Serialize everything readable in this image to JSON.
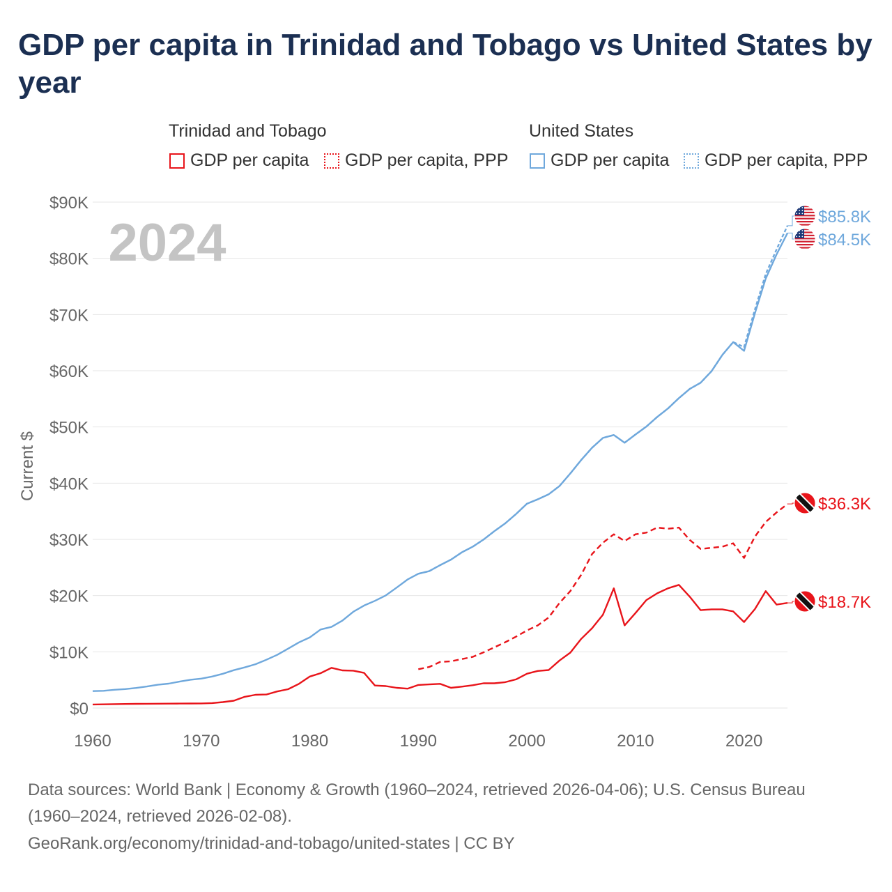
{
  "title": "GDP per capita in Trinidad and Tobago vs United States by year",
  "legend": {
    "groups": [
      {
        "name": "Trinidad and Tobago",
        "items": [
          {
            "label": "GDP per capita",
            "style": "solid"
          },
          {
            "label": "GDP per capita, PPP",
            "style": "dotted"
          }
        ],
        "color": "#e8141a"
      },
      {
        "name": "United States",
        "items": [
          {
            "label": "GDP per capita",
            "style": "solid"
          },
          {
            "label": "GDP per capita, PPP",
            "style": "dotted"
          }
        ],
        "color": "#6fa8dc"
      }
    ]
  },
  "year_watermark": "2024",
  "colors": {
    "tt": "#e8141a",
    "us": "#6fa8dc",
    "title": "#1b2f52",
    "grid": "#e6e6e6",
    "axis_text": "#666666"
  },
  "chart_data": {
    "type": "line",
    "title": "GDP per capita in Trinidad and Tobago vs United States by year",
    "ylabel": "Current $",
    "xlabel": "",
    "xlim": [
      1960,
      2024
    ],
    "ylim": [
      0,
      90000
    ],
    "x_ticks": [
      1960,
      1970,
      1980,
      1990,
      2000,
      2010,
      2020
    ],
    "x_tick_labels": [
      "1960",
      "1970",
      "1980",
      "1990",
      "2000",
      "2010",
      "2020"
    ],
    "y_ticks": [
      0,
      10000,
      20000,
      30000,
      40000,
      50000,
      60000,
      70000,
      80000,
      90000
    ],
    "y_tick_labels": [
      "$0",
      "$10K",
      "$20K",
      "$30K",
      "$40K",
      "$50K",
      "$60K",
      "$70K",
      "$80K",
      "$90K"
    ],
    "series": [
      {
        "name": "United States GDP per capita",
        "country": "us",
        "style": "solid",
        "end_label": "$84.5K",
        "points": [
          [
            1960,
            3007
          ],
          [
            1961,
            3067
          ],
          [
            1962,
            3244
          ],
          [
            1963,
            3375
          ],
          [
            1964,
            3574
          ],
          [
            1965,
            3828
          ],
          [
            1966,
            4146
          ],
          [
            1967,
            4336
          ],
          [
            1968,
            4696
          ],
          [
            1969,
            5032
          ],
          [
            1970,
            5234
          ],
          [
            1971,
            5609
          ],
          [
            1972,
            6094
          ],
          [
            1973,
            6726
          ],
          [
            1974,
            7226
          ],
          [
            1975,
            7801
          ],
          [
            1976,
            8592
          ],
          [
            1977,
            9453
          ],
          [
            1978,
            10565
          ],
          [
            1979,
            11674
          ],
          [
            1980,
            12575
          ],
          [
            1981,
            13976
          ],
          [
            1982,
            14434
          ],
          [
            1983,
            15544
          ],
          [
            1984,
            17121
          ],
          [
            1985,
            18237
          ],
          [
            1986,
            19071
          ],
          [
            1987,
            20039
          ],
          [
            1988,
            21417
          ],
          [
            1989,
            22857
          ],
          [
            1990,
            23889
          ],
          [
            1991,
            24342
          ],
          [
            1992,
            25419
          ],
          [
            1993,
            26387
          ],
          [
            1994,
            27695
          ],
          [
            1995,
            28691
          ],
          [
            1996,
            29968
          ],
          [
            1997,
            31459
          ],
          [
            1998,
            32854
          ],
          [
            1999,
            34515
          ],
          [
            2000,
            36330
          ],
          [
            2001,
            37134
          ],
          [
            2002,
            38023
          ],
          [
            2003,
            39497
          ],
          [
            2004,
            41725
          ],
          [
            2005,
            44123
          ],
          [
            2006,
            46302
          ],
          [
            2007,
            48050
          ],
          [
            2008,
            48570
          ],
          [
            2009,
            47195
          ],
          [
            2010,
            48651
          ],
          [
            2011,
            50066
          ],
          [
            2012,
            51784
          ],
          [
            2013,
            53291
          ],
          [
            2014,
            55124
          ],
          [
            2015,
            56763
          ],
          [
            2016,
            57867
          ],
          [
            2017,
            59915
          ],
          [
            2018,
            62805
          ],
          [
            2019,
            65095
          ],
          [
            2020,
            63528
          ],
          [
            2021,
            70220
          ],
          [
            2022,
            76399
          ],
          [
            2023,
            80705
          ],
          [
            2024,
            84500
          ]
        ]
      },
      {
        "name": "United States GDP per capita, PPP",
        "country": "us",
        "style": "dotted",
        "end_label": "$85.8K",
        "points": [
          [
            1990,
            23889
          ],
          [
            1991,
            24342
          ],
          [
            1992,
            25419
          ],
          [
            1993,
            26387
          ],
          [
            1994,
            27695
          ],
          [
            1995,
            28691
          ],
          [
            1996,
            29968
          ],
          [
            1997,
            31459
          ],
          [
            1998,
            32854
          ],
          [
            1999,
            34515
          ],
          [
            2000,
            36330
          ],
          [
            2001,
            37134
          ],
          [
            2002,
            38023
          ],
          [
            2003,
            39497
          ],
          [
            2004,
            41725
          ],
          [
            2005,
            44123
          ],
          [
            2006,
            46302
          ],
          [
            2007,
            48050
          ],
          [
            2008,
            48570
          ],
          [
            2009,
            47195
          ],
          [
            2010,
            48651
          ],
          [
            2011,
            50066
          ],
          [
            2012,
            51784
          ],
          [
            2013,
            53291
          ],
          [
            2014,
            55124
          ],
          [
            2015,
            56763
          ],
          [
            2016,
            57867
          ],
          [
            2017,
            59915
          ],
          [
            2018,
            62805
          ],
          [
            2019,
            65095
          ],
          [
            2020,
            64200
          ],
          [
            2021,
            70900
          ],
          [
            2022,
            77200
          ],
          [
            2023,
            81600
          ],
          [
            2024,
            85800
          ]
        ]
      },
      {
        "name": "Trinidad and Tobago GDP per capita",
        "country": "tt",
        "style": "solid",
        "end_label": "$18.7K",
        "points": [
          [
            1960,
            630
          ],
          [
            1961,
            660
          ],
          [
            1962,
            690
          ],
          [
            1963,
            720
          ],
          [
            1964,
            750
          ],
          [
            1965,
            760
          ],
          [
            1966,
            770
          ],
          [
            1967,
            780
          ],
          [
            1968,
            790
          ],
          [
            1969,
            800
          ],
          [
            1970,
            820
          ],
          [
            1971,
            880
          ],
          [
            1972,
            1050
          ],
          [
            1973,
            1300
          ],
          [
            1974,
            2000
          ],
          [
            1975,
            2350
          ],
          [
            1976,
            2400
          ],
          [
            1977,
            2950
          ],
          [
            1978,
            3350
          ],
          [
            1979,
            4300
          ],
          [
            1980,
            5600
          ],
          [
            1981,
            6200
          ],
          [
            1982,
            7150
          ],
          [
            1983,
            6700
          ],
          [
            1984,
            6650
          ],
          [
            1985,
            6250
          ],
          [
            1986,
            4000
          ],
          [
            1987,
            3900
          ],
          [
            1988,
            3600
          ],
          [
            1989,
            3450
          ],
          [
            1990,
            4100
          ],
          [
            1991,
            4200
          ],
          [
            1992,
            4300
          ],
          [
            1993,
            3600
          ],
          [
            1994,
            3800
          ],
          [
            1995,
            4050
          ],
          [
            1996,
            4400
          ],
          [
            1997,
            4400
          ],
          [
            1998,
            4600
          ],
          [
            1999,
            5100
          ],
          [
            2000,
            6100
          ],
          [
            2001,
            6600
          ],
          [
            2002,
            6750
          ],
          [
            2003,
            8450
          ],
          [
            2004,
            9850
          ],
          [
            2005,
            12300
          ],
          [
            2006,
            14200
          ],
          [
            2007,
            16600
          ],
          [
            2008,
            21300
          ],
          [
            2009,
            14700
          ],
          [
            2010,
            16900
          ],
          [
            2011,
            19200
          ],
          [
            2012,
            20400
          ],
          [
            2013,
            21300
          ],
          [
            2014,
            21900
          ],
          [
            2015,
            19800
          ],
          [
            2016,
            17400
          ],
          [
            2017,
            17550
          ],
          [
            2018,
            17550
          ],
          [
            2019,
            17200
          ],
          [
            2020,
            15300
          ],
          [
            2021,
            17600
          ],
          [
            2022,
            20800
          ],
          [
            2023,
            18400
          ],
          [
            2024,
            18700
          ]
        ]
      },
      {
        "name": "Trinidad and Tobago GDP per capita, PPP",
        "country": "tt",
        "style": "dotted",
        "end_label": "$36.3K",
        "points": [
          [
            1990,
            6900
          ],
          [
            1991,
            7300
          ],
          [
            1992,
            8200
          ],
          [
            1993,
            8300
          ],
          [
            1994,
            8700
          ],
          [
            1995,
            9100
          ],
          [
            1996,
            9900
          ],
          [
            1997,
            10800
          ],
          [
            1998,
            11700
          ],
          [
            1999,
            12700
          ],
          [
            2000,
            13800
          ],
          [
            2001,
            14700
          ],
          [
            2002,
            16100
          ],
          [
            2003,
            18700
          ],
          [
            2004,
            20800
          ],
          [
            2005,
            23700
          ],
          [
            2006,
            27400
          ],
          [
            2007,
            29400
          ],
          [
            2008,
            30900
          ],
          [
            2009,
            29700
          ],
          [
            2010,
            30900
          ],
          [
            2011,
            31200
          ],
          [
            2012,
            32100
          ],
          [
            2013,
            31900
          ],
          [
            2014,
            32100
          ],
          [
            2015,
            29900
          ],
          [
            2016,
            28300
          ],
          [
            2017,
            28500
          ],
          [
            2018,
            28700
          ],
          [
            2019,
            29300
          ],
          [
            2020,
            26700
          ],
          [
            2021,
            30500
          ],
          [
            2022,
            33100
          ],
          [
            2023,
            34800
          ],
          [
            2024,
            36300
          ]
        ]
      }
    ]
  },
  "sources": {
    "line1": "Data sources: World Bank | Economy & Growth (1960–2024, retrieved 2026-04-06); U.S. Census Bureau",
    "line2": "(1960–2024, retrieved 2026-02-08).",
    "line3": "GeoRank.org/economy/trinidad-and-tobago/united-states | CC BY"
  }
}
